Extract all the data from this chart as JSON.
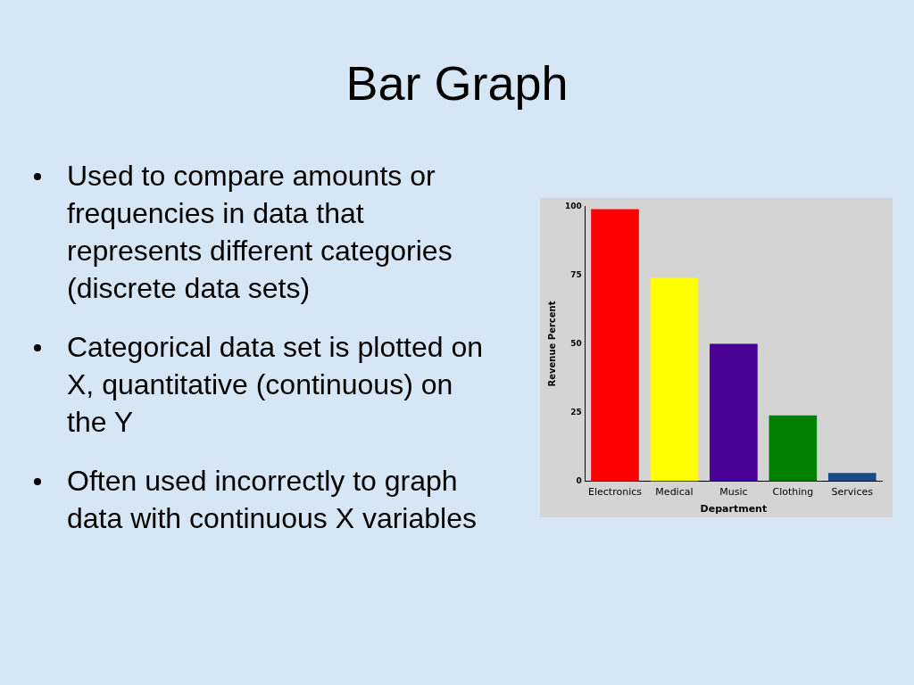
{
  "chart_data": {
    "type": "bar",
    "title": "Bar Graph",
    "categories": [
      "Electronics",
      "Medical",
      "Music",
      "Clothing",
      "Services"
    ],
    "values": [
      99,
      74,
      50,
      24,
      3
    ],
    "colors": [
      "#ff0000",
      "#ffff00",
      "#4b0096",
      "#008000",
      "#1a4a8a"
    ],
    "xlabel": "Department",
    "ylabel": "Revenue Percent",
    "ylim": [
      0,
      100
    ],
    "yticks": [
      0,
      25,
      50,
      75,
      100
    ],
    "grid": false,
    "legend": false,
    "annotations": [
      "Used to compare amounts or frequencies in data that represents different categories (discrete data sets)",
      "Categorical data set is plotted on X, quantitative (continuous) on the Y",
      "Often used incorrectly to graph data with continuous X variables"
    ]
  }
}
